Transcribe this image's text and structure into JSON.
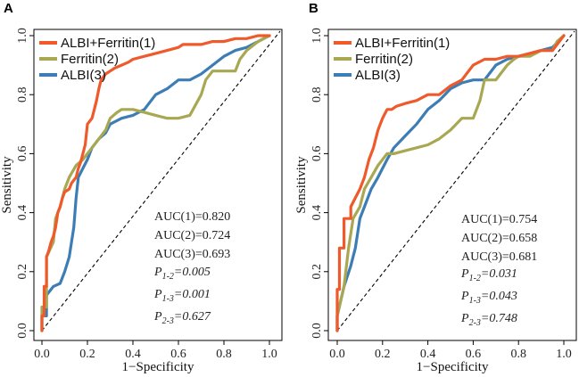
{
  "chart_data": [
    {
      "type": "line",
      "panel": "A",
      "xlabel": "1−Specificity",
      "ylabel": "Sensitivity",
      "xlim": [
        0,
        1
      ],
      "ylim": [
        0,
        1
      ],
      "ticks": [
        "0.0",
        "0.2",
        "0.4",
        "0.6",
        "0.8",
        "1.0"
      ],
      "legend_position": "top-left",
      "series": [
        {
          "name": "ALBI+Ferritin(1)",
          "color": "#ef5a2c",
          "x": [
            0,
            0,
            0.01,
            0.01,
            0.02,
            0.02,
            0.03,
            0.04,
            0.05,
            0.06,
            0.07,
            0.08,
            0.09,
            0.1,
            0.12,
            0.13,
            0.15,
            0.16,
            0.17,
            0.18,
            0.19,
            0.2,
            0.22,
            0.23,
            0.24,
            0.25,
            0.26,
            0.28,
            0.3,
            0.32,
            0.35,
            0.38,
            0.4,
            0.45,
            0.5,
            0.55,
            0.6,
            0.62,
            0.65,
            0.7,
            0.75,
            0.8,
            0.85,
            0.9,
            0.95,
            1.0
          ],
          "y": [
            0,
            0.05,
            0.05,
            0.15,
            0.15,
            0.25,
            0.27,
            0.3,
            0.32,
            0.35,
            0.4,
            0.42,
            0.45,
            0.47,
            0.48,
            0.5,
            0.52,
            0.55,
            0.57,
            0.6,
            0.63,
            0.7,
            0.72,
            0.75,
            0.78,
            0.82,
            0.85,
            0.87,
            0.88,
            0.89,
            0.9,
            0.91,
            0.92,
            0.93,
            0.94,
            0.95,
            0.96,
            0.97,
            0.97,
            0.97,
            0.98,
            0.98,
            0.99,
            0.99,
            1.0,
            1.0
          ]
        },
        {
          "name": "Ferritin(2)",
          "color": "#a8a852",
          "x": [
            0,
            0,
            0.02,
            0.02,
            0.05,
            0.06,
            0.08,
            0.1,
            0.12,
            0.15,
            0.18,
            0.2,
            0.22,
            0.25,
            0.28,
            0.3,
            0.33,
            0.35,
            0.4,
            0.45,
            0.5,
            0.55,
            0.6,
            0.65,
            0.7,
            0.72,
            0.75,
            0.8,
            0.85,
            0.87,
            0.9,
            0.95,
            1.0
          ],
          "y": [
            0,
            0.08,
            0.08,
            0.25,
            0.3,
            0.38,
            0.42,
            0.48,
            0.52,
            0.56,
            0.58,
            0.6,
            0.62,
            0.65,
            0.68,
            0.72,
            0.74,
            0.75,
            0.75,
            0.74,
            0.73,
            0.72,
            0.72,
            0.73,
            0.8,
            0.85,
            0.88,
            0.88,
            0.88,
            0.92,
            0.95,
            0.98,
            1.0
          ]
        },
        {
          "name": "ALBI(3)",
          "color": "#3d7db5",
          "x": [
            0,
            0,
            0.02,
            0.02,
            0.05,
            0.08,
            0.1,
            0.12,
            0.14,
            0.15,
            0.16,
            0.18,
            0.2,
            0.22,
            0.25,
            0.28,
            0.3,
            0.35,
            0.4,
            0.45,
            0.5,
            0.55,
            0.6,
            0.65,
            0.7,
            0.75,
            0.8,
            0.85,
            0.9,
            0.95,
            1.0
          ],
          "y": [
            0,
            0.05,
            0.05,
            0.12,
            0.15,
            0.16,
            0.2,
            0.25,
            0.35,
            0.45,
            0.52,
            0.55,
            0.58,
            0.62,
            0.65,
            0.67,
            0.7,
            0.72,
            0.73,
            0.75,
            0.8,
            0.82,
            0.85,
            0.85,
            0.87,
            0.9,
            0.93,
            0.95,
            0.96,
            0.98,
            1.0
          ]
        }
      ],
      "annotations": {
        "auc": [
          "AUC(1)=0.820",
          "AUC(2)=0.724",
          "AUC(3)=0.693"
        ],
        "p": [
          {
            "base": "P",
            "sub": "1-2",
            "value": "=0.005"
          },
          {
            "base": "P",
            "sub": "1-3",
            "value": "=0.001"
          },
          {
            "base": "P",
            "sub": "2-3",
            "value": "=0.627"
          }
        ]
      }
    },
    {
      "type": "line",
      "panel": "B",
      "xlabel": "1−Specificity",
      "ylabel": "Sensitivity",
      "xlim": [
        0,
        1
      ],
      "ylim": [
        0,
        1
      ],
      "ticks": [
        "0.0",
        "0.2",
        "0.4",
        "0.6",
        "0.8",
        "1.0"
      ],
      "legend_position": "top-left",
      "series": [
        {
          "name": "ALBI+Ferritin(1)",
          "color": "#ef5a2c",
          "x": [
            0,
            0,
            0.01,
            0.01,
            0.03,
            0.03,
            0.06,
            0.06,
            0.08,
            0.1,
            0.12,
            0.14,
            0.16,
            0.18,
            0.2,
            0.22,
            0.24,
            0.26,
            0.3,
            0.35,
            0.4,
            0.45,
            0.5,
            0.55,
            0.58,
            0.6,
            0.65,
            0.7,
            0.75,
            0.8,
            0.85,
            0.9,
            0.95,
            0.97,
            1.0
          ],
          "y": [
            0,
            0.14,
            0.14,
            0.28,
            0.28,
            0.38,
            0.38,
            0.42,
            0.45,
            0.48,
            0.52,
            0.58,
            0.62,
            0.68,
            0.72,
            0.75,
            0.75,
            0.76,
            0.77,
            0.78,
            0.8,
            0.8,
            0.83,
            0.85,
            0.88,
            0.9,
            0.92,
            0.92,
            0.93,
            0.93,
            0.94,
            0.95,
            0.95,
            0.97,
            1.0
          ]
        },
        {
          "name": "Ferritin(2)",
          "color": "#a8a852",
          "x": [
            0,
            0,
            0.03,
            0.05,
            0.07,
            0.1,
            0.12,
            0.15,
            0.18,
            0.2,
            0.22,
            0.25,
            0.3,
            0.35,
            0.4,
            0.45,
            0.5,
            0.55,
            0.6,
            0.63,
            0.65,
            0.7,
            0.72,
            0.75,
            0.78,
            0.8,
            0.85,
            0.9,
            0.95,
            0.97,
            1.0
          ],
          "y": [
            0,
            0.05,
            0.15,
            0.28,
            0.38,
            0.42,
            0.48,
            0.52,
            0.56,
            0.58,
            0.6,
            0.6,
            0.61,
            0.62,
            0.63,
            0.65,
            0.68,
            0.72,
            0.72,
            0.78,
            0.85,
            0.85,
            0.87,
            0.9,
            0.92,
            0.93,
            0.93,
            0.95,
            0.95,
            0.98,
            1.0
          ]
        },
        {
          "name": "ALBI(3)",
          "color": "#3d7db5",
          "x": [
            0,
            0,
            0.03,
            0.06,
            0.08,
            0.1,
            0.12,
            0.15,
            0.18,
            0.2,
            0.22,
            0.25,
            0.3,
            0.35,
            0.4,
            0.45,
            0.5,
            0.55,
            0.6,
            0.65,
            0.7,
            0.75,
            0.8,
            0.85,
            0.9,
            0.95,
            1.0
          ],
          "y": [
            0,
            0.05,
            0.15,
            0.22,
            0.28,
            0.38,
            0.42,
            0.48,
            0.52,
            0.55,
            0.58,
            0.62,
            0.66,
            0.7,
            0.75,
            0.78,
            0.82,
            0.84,
            0.85,
            0.85,
            0.9,
            0.92,
            0.93,
            0.94,
            0.95,
            0.96,
            1.0
          ]
        }
      ],
      "annotations": {
        "auc": [
          "AUC(1)=0.754",
          "AUC(2)=0.658",
          "AUC(3)=0.681"
        ],
        "p": [
          {
            "base": "P",
            "sub": "1-2",
            "value": "=0.031"
          },
          {
            "base": "P",
            "sub": "1-3",
            "value": "=0.043"
          },
          {
            "base": "P",
            "sub": "2-3",
            "value": "=0.748"
          }
        ]
      }
    }
  ]
}
